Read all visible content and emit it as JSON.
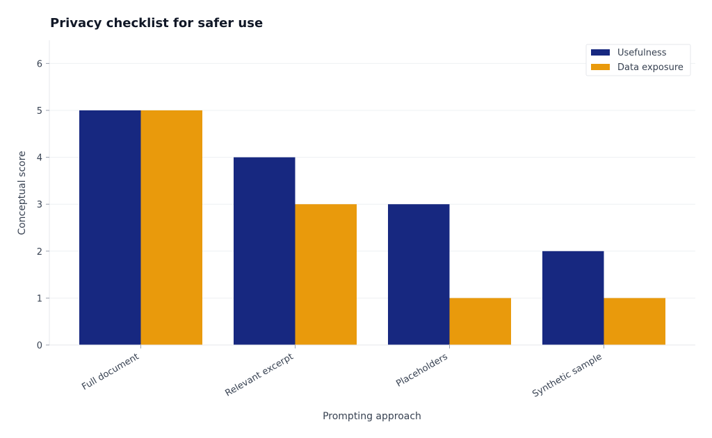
{
  "chart_data": {
    "type": "bar",
    "title": "Privacy checklist for safer use",
    "xlabel": "Prompting approach",
    "ylabel": "Conceptual score",
    "categories": [
      "Full document",
      "Relevant excerpt",
      "Placeholders",
      "Synthetic sample"
    ],
    "series": [
      {
        "name": "Usefulness",
        "values": [
          5,
          4,
          3,
          2
        ],
        "color": "#172880"
      },
      {
        "name": "Data exposure",
        "values": [
          5,
          3,
          1,
          1
        ],
        "color": "#E99A0C"
      }
    ],
    "ylim": [
      0,
      6.5
    ],
    "yticks": [
      0,
      1,
      2,
      3,
      4,
      5,
      6
    ],
    "grid": true,
    "legend_position": "top-right"
  }
}
